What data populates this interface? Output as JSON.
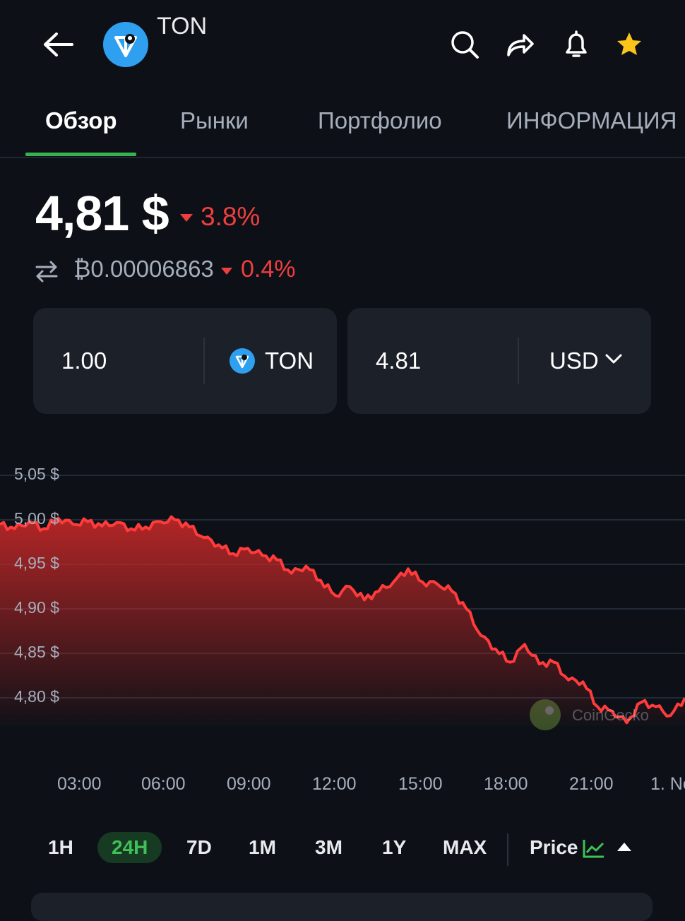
{
  "header": {
    "coin_name": "TON",
    "icons": [
      "back-arrow-icon",
      "search-icon",
      "share-icon",
      "bell-icon",
      "star-icon"
    ],
    "favorite_color": "#fcc419"
  },
  "tabs": [
    {
      "label": "Обзор",
      "active": true
    },
    {
      "label": "Рынки",
      "active": false
    },
    {
      "label": "Портфолио",
      "active": false
    },
    {
      "label": "ИНФОРМАЦИЯ",
      "active": false
    }
  ],
  "price": {
    "value": "4,81 $",
    "change": "3.8%",
    "btc_value": "₿0.00006863",
    "btc_change": "0.4%",
    "down_color": "#f03e3e"
  },
  "converter": {
    "amount": "1.00",
    "coin": "TON",
    "result": "4.81",
    "currency": "USD"
  },
  "chart_data": {
    "type": "area",
    "y_ticks": [
      "5,05 $",
      "5,00 $",
      "4,95 $",
      "4,90 $",
      "4,85 $",
      "4,80 $"
    ],
    "x_ticks": [
      "03:00",
      "06:00",
      "09:00",
      "12:00",
      "15:00",
      "18:00",
      "21:00",
      "1. No"
    ],
    "ylim": [
      4.765,
      5.075
    ],
    "x_hours": [
      0,
      0.5,
      1,
      1.5,
      2,
      2.5,
      3,
      3.5,
      4,
      4.5,
      5,
      5.5,
      6,
      6.5,
      7,
      7.5,
      8,
      8.5,
      9,
      9.5,
      10,
      10.5,
      11,
      11.5,
      12,
      12.5,
      13,
      13.5,
      14,
      14.5,
      15,
      15.5,
      16,
      16.5,
      17,
      17.5,
      18,
      18.5,
      19,
      19.5,
      20,
      20.5,
      21,
      21.5,
      22,
      22.5,
      23,
      23.5
    ],
    "values": [
      4.995,
      4.99,
      4.998,
      4.99,
      5.002,
      4.995,
      4.998,
      4.993,
      4.997,
      4.99,
      4.992,
      4.998,
      5.0,
      4.992,
      4.98,
      4.972,
      4.962,
      4.968,
      4.96,
      4.955,
      4.94,
      4.948,
      4.932,
      4.915,
      4.925,
      4.91,
      4.92,
      4.93,
      4.945,
      4.93,
      4.928,
      4.92,
      4.9,
      4.87,
      4.855,
      4.84,
      4.86,
      4.838,
      4.84,
      4.82,
      4.818,
      4.79,
      4.785,
      4.772,
      4.795,
      4.79,
      4.78,
      4.8
    ],
    "line_color": "#ff3b3b",
    "watermark": "CoinGecko"
  },
  "range": {
    "options": [
      "1H",
      "24H",
      "7D",
      "1M",
      "3M",
      "1Y",
      "MAX"
    ],
    "selected": "24H",
    "metric": "Price"
  }
}
